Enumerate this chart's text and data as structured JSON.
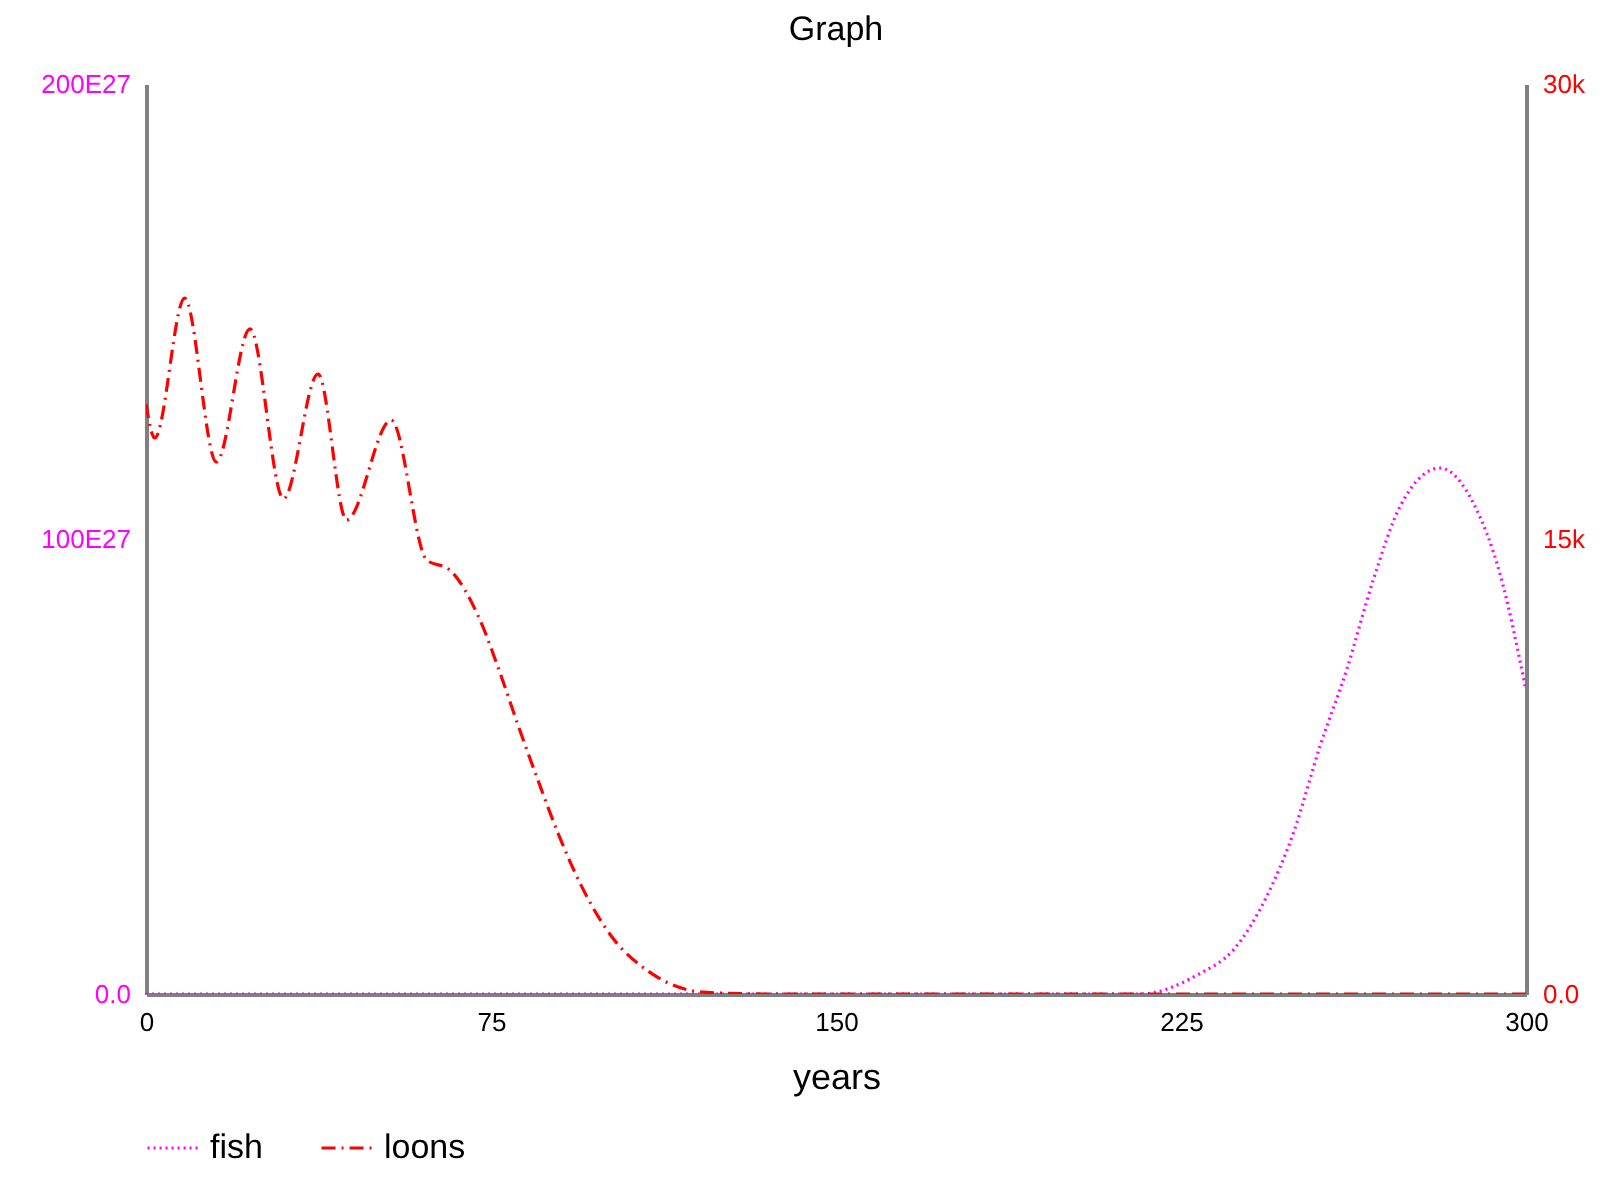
{
  "chart_data": {
    "type": "line",
    "title": "Graph",
    "xlabel": "years",
    "xlim": [
      0,
      300
    ],
    "xticks": [
      0,
      75,
      150,
      225,
      300
    ],
    "ylim": [
      0,
      2e+29
    ],
    "yticks": [
      {
        "value": 0,
        "label": "0.0"
      },
      {
        "value": 1e+29,
        "label": "100E27"
      },
      {
        "value": 2e+29,
        "label": "200E27"
      }
    ],
    "y2lim": [
      0,
      30000
    ],
    "y2ticks": [
      {
        "value": 0,
        "label": "0.0"
      },
      {
        "value": 15000,
        "label": "15k"
      },
      {
        "value": 30000,
        "label": "30k"
      }
    ],
    "legend": "bottom",
    "grid": false,
    "marker": "none",
    "series": [
      {
        "name": "fish",
        "color": "#ff00ff",
        "line_style": "dotted",
        "x": [
          0,
          100,
          200,
          216,
          229.1,
          236.4,
          243.6,
          249.4,
          255.2,
          261,
          266.8,
          272.6,
          281.3,
          288.6,
          294.3,
          300
        ],
        "values": [
          0,
          0,
          0,
          0,
          4.5e+27,
          9.7e+27,
          2.14e+28,
          3.53e+28,
          5.44e+28,
          7.12e+28,
          9.1e+28,
          1.071e+29,
          1.156e+29,
          1.078e+29,
          9.25e+28,
          6.68e+28
        ]
      },
      {
        "name": "loons",
        "color": "#ff0000",
        "line_style": "dashed",
        "axis": "y2",
        "x": [
          0,
          1.9,
          8.4,
          15.3,
          22.6,
          29.9,
          37.4,
          43.6,
          53.3,
          61,
          66,
          72.6,
          77,
          81,
          85.2,
          89.6,
          94.6,
          100.9,
          109.9,
          121.2,
          135,
          200,
          300
        ],
        "values": [
          19450,
          18330,
          22940,
          17540,
          21930,
          16330,
          20440,
          15630,
          18920,
          14310,
          13980,
          12330,
          10570,
          8810,
          7050,
          5290,
          3580,
          1960,
          680,
          60,
          0,
          0,
          0
        ]
      }
    ]
  }
}
